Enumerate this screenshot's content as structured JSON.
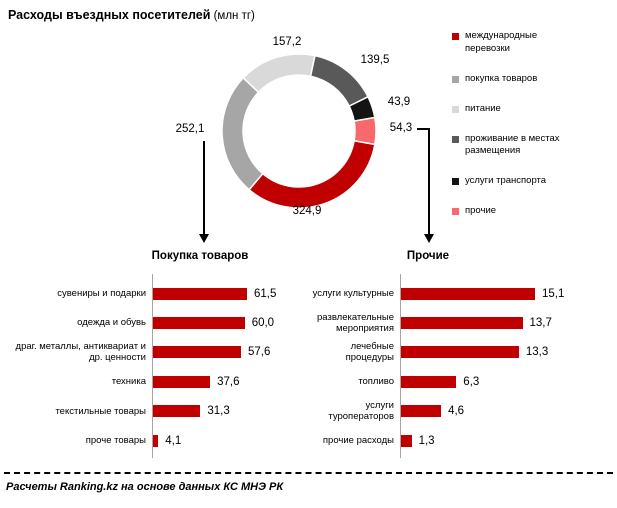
{
  "title": {
    "main": "Расходы въездных посетителей",
    "unit": " (млн тг)"
  },
  "colors": {
    "accent_dark_red": "#C00000",
    "gray": "#A6A6A6",
    "light_gray": "#D9D9D9",
    "dark_gray": "#595959",
    "black": "#141414",
    "pink": "#F8696B",
    "axis_gray": "#A6A6A6"
  },
  "legend": {
    "items": [
      {
        "label": "международные перевозки",
        "color": "#C00000"
      },
      {
        "label": "покупка товаров",
        "color": "#A6A6A6"
      },
      {
        "label": "питание",
        "color": "#D9D9D9"
      },
      {
        "label": "проживание в местах размещения",
        "color": "#595959"
      },
      {
        "label": "услуги транспорта",
        "color": "#141414"
      },
      {
        "label": "прочие",
        "color": "#F8696B"
      }
    ]
  },
  "chart_data": [
    {
      "type": "pie",
      "subtype": "donut",
      "title": "Расходы въездных посетителей (млн тг)",
      "start_angle_deg": 100,
      "direction": "clockwise",
      "legend_position": "right",
      "segments": [
        {
          "name": "международные перевозки",
          "value": 324.9,
          "label": "324,9",
          "color": "#C00000"
        },
        {
          "name": "покупка товаров",
          "value": 252.1,
          "label": "252,1",
          "color": "#A6A6A6"
        },
        {
          "name": "питание",
          "value": 157.2,
          "label": "157,2",
          "color": "#D9D9D9"
        },
        {
          "name": "проживание в местах размещения",
          "value": 139.5,
          "label": "139,5",
          "color": "#595959"
        },
        {
          "name": "услуги транспорта",
          "value": 43.9,
          "label": "43,9",
          "color": "#141414"
        },
        {
          "name": "прочие",
          "value": 54.3,
          "label": "54,3",
          "color": "#F8696B"
        }
      ]
    },
    {
      "type": "bar",
      "orientation": "horizontal",
      "title": "Покупка товаров",
      "bar_color": "#C00000",
      "xlim": [
        0,
        65
      ],
      "grid": false,
      "categories": [
        "сувениры и подарки",
        "одежда и обувь",
        "драг. металлы, антиквариат и др. ценности",
        "техника",
        "текстильные товары",
        "проче товары"
      ],
      "values": [
        61.5,
        60.0,
        57.6,
        37.6,
        31.3,
        4.1
      ],
      "labels": [
        "61,5",
        "60,0",
        "57,6",
        "37,6",
        "31,3",
        "4,1"
      ]
    },
    {
      "type": "bar",
      "orientation": "horizontal",
      "title": "Прочие",
      "bar_color": "#C00000",
      "xlim": [
        0,
        17
      ],
      "grid": false,
      "categories": [
        "услуги культурные",
        "развлекательные мероприятия",
        "лечебные процедуры",
        "топливо",
        "услуги туроператоров",
        "прочие расходы"
      ],
      "values": [
        15.1,
        13.7,
        13.3,
        6.3,
        4.6,
        1.3
      ],
      "labels": [
        "15,1",
        "13,7",
        "13,3",
        "6,3",
        "4,6",
        "1,3"
      ]
    }
  ],
  "sections": {
    "left_title": "Покупка товаров",
    "right_title": "Прочие"
  },
  "footer": {
    "source": "Расчеты Ranking.kz на основе данных КС МНЭ РК"
  }
}
